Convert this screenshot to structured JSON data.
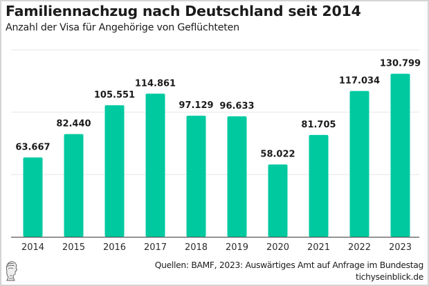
{
  "header": {
    "title": "Familiennachzug nach Deutschland seit 2014",
    "subtitle": "Anzahl der Visa für Angehörige von Geflüchteten"
  },
  "footer": {
    "source": "Quellen: BAMF, 2023: Auswärtiges Amt auf Anfrage im Bundestag",
    "site": "tichyseinblick.de",
    "logo_icon": "greek-head-logo-icon"
  },
  "colors": {
    "bar": "#00c9a0",
    "label": "#1b1b1b",
    "grid": "#e6e6e6",
    "axis": "#555555"
  },
  "chart_data": {
    "type": "bar",
    "title": "Familiennachzug nach Deutschland seit 2014",
    "subtitle": "Anzahl der Visa für Angehörige von Geflüchteten",
    "xlabel": "",
    "ylabel": "",
    "categories": [
      "2014",
      "2015",
      "2016",
      "2017",
      "2018",
      "2019",
      "2020",
      "2021",
      "2022",
      "2023"
    ],
    "values": [
      63667,
      82440,
      105551,
      114861,
      97129,
      96633,
      58022,
      81705,
      117034,
      130799
    ],
    "value_labels": [
      "63.667",
      "82.440",
      "105.551",
      "114.861",
      "97.129",
      "96.633",
      "58.022",
      "81.705",
      "117.034",
      "130.799"
    ],
    "ylim": [
      0,
      150000
    ],
    "gridlines": [
      50000,
      100000,
      150000
    ],
    "grid": true,
    "y_tick_labels_visible": false,
    "legend": "none"
  }
}
